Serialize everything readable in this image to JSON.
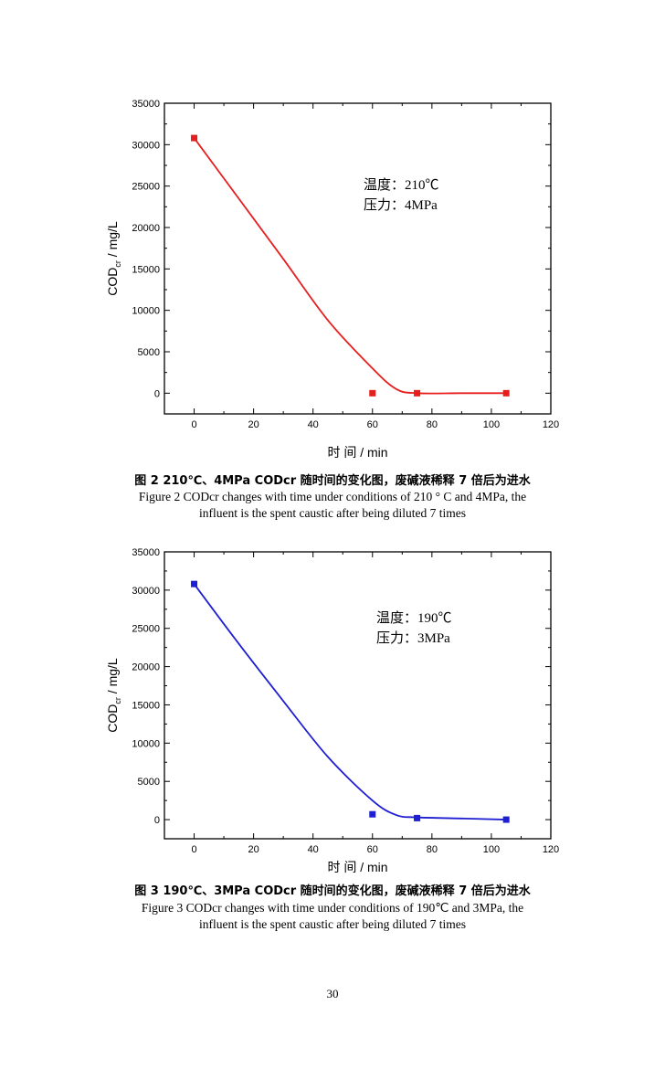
{
  "chart_data": [
    {
      "type": "line",
      "xlabel": "时 间 / min",
      "ylabel": "COD",
      "ylabel_sub": "cr",
      "ylabel_unit": " / mg/L",
      "xlim": [
        -10,
        120
      ],
      "ylim": [
        -2500,
        35000
      ],
      "xticks": [
        0,
        20,
        40,
        60,
        80,
        100,
        120
      ],
      "yticks": [
        0,
        5000,
        10000,
        15000,
        20000,
        25000,
        30000,
        35000
      ],
      "series": [
        {
          "color": "#e61e1e",
          "points": [
            {
              "x": 0,
              "y": 30800
            },
            {
              "x": 60,
              "y": 0
            },
            {
              "x": 75,
              "y": 0
            },
            {
              "x": 105,
              "y": 0
            }
          ],
          "curve": [
            {
              "x": 0,
              "y": 30800
            },
            {
              "x": 15,
              "y": 23500
            },
            {
              "x": 30,
              "y": 16200
            },
            {
              "x": 45,
              "y": 8800
            },
            {
              "x": 60,
              "y": 3000
            },
            {
              "x": 68,
              "y": 500
            },
            {
              "x": 75,
              "y": 0
            },
            {
              "x": 90,
              "y": 0
            },
            {
              "x": 105,
              "y": 0
            }
          ]
        }
      ],
      "annotations": [
        "温度：210℃",
        "压力：4MPa"
      ]
    },
    {
      "type": "line",
      "xlabel": "时 间 / min",
      "ylabel": "COD",
      "ylabel_sub": "cr",
      "ylabel_unit": " / mg/L",
      "xlim": [
        -10,
        120
      ],
      "ylim": [
        -2500,
        35000
      ],
      "xticks": [
        0,
        20,
        40,
        60,
        80,
        100,
        120
      ],
      "yticks": [
        0,
        5000,
        10000,
        15000,
        20000,
        25000,
        30000,
        35000
      ],
      "series": [
        {
          "color": "#1e1ed2",
          "points": [
            {
              "x": 0,
              "y": 30800
            },
            {
              "x": 60,
              "y": 700
            },
            {
              "x": 75,
              "y": 200
            },
            {
              "x": 105,
              "y": 0
            }
          ],
          "curve": [
            {
              "x": 0,
              "y": 30800
            },
            {
              "x": 15,
              "y": 23000
            },
            {
              "x": 30,
              "y": 15500
            },
            {
              "x": 45,
              "y": 8200
            },
            {
              "x": 60,
              "y": 2500
            },
            {
              "x": 68,
              "y": 600
            },
            {
              "x": 75,
              "y": 300
            },
            {
              "x": 90,
              "y": 150
            },
            {
              "x": 105,
              "y": 0
            }
          ]
        }
      ],
      "annotations": [
        "温度：190℃",
        "压力：3MPa"
      ]
    }
  ],
  "captions": [
    {
      "zh": "图 2 210℃、4MPa CODcr 随时间的变化图，废碱液稀释 7 倍后为进水",
      "en_line1": "Figure 2    CODcr changes with time under conditions of 210 ° C and 4MPa, the",
      "en_line2": "influent is the spent caustic after being diluted 7 times"
    },
    {
      "zh": "图 3 190℃、3MPa CODcr 随时间的变化图，废碱液稀释 7 倍后为进水",
      "en_line1": "Figure 3    CODcr changes with time under conditions of 190℃ and 3MPa, the",
      "en_line2": "influent is the spent caustic after being diluted 7 times"
    }
  ],
  "page_number": "30"
}
